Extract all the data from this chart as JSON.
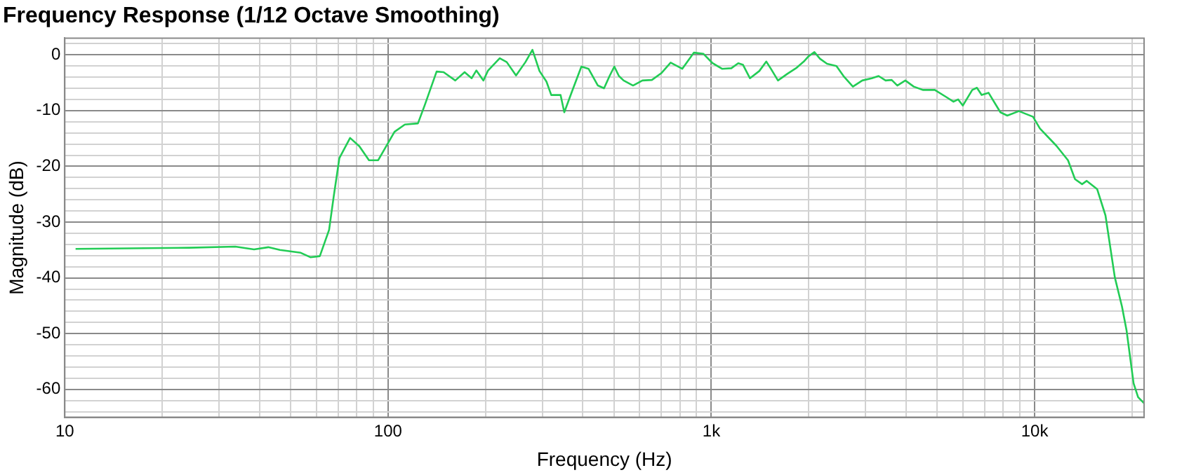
{
  "chart_data": {
    "type": "line",
    "title": "Frequency Response (1/12 Octave Smoothing)",
    "xlabel": "Frequency (Hz)",
    "ylabel": "Magnitude (dB)",
    "log": "x",
    "grid": true,
    "legend": false,
    "marker": "none",
    "line_style": "solid",
    "xlim": [
      10,
      21800
    ],
    "xticks": [
      10,
      {
        "value": 20,
        "label": null
      },
      {
        "value": 30,
        "label": null
      },
      {
        "value": 40,
        "label": null
      },
      {
        "value": 50,
        "label": null
      },
      {
        "value": 60,
        "label": null
      },
      {
        "value": 70,
        "label": null
      },
      {
        "value": 80,
        "label": null
      },
      {
        "value": 90,
        "label": null
      },
      100,
      {
        "value": 200,
        "label": null
      },
      {
        "value": 300,
        "label": null
      },
      {
        "value": 400,
        "label": null
      },
      {
        "value": 500,
        "label": null
      },
      {
        "value": 600,
        "label": null
      },
      {
        "value": 700,
        "label": null
      },
      {
        "value": 800,
        "label": null
      },
      {
        "value": 900,
        "label": null
      },
      {
        "value": 1000,
        "label": "1k"
      },
      {
        "value": 2000,
        "label": null
      },
      {
        "value": 3000,
        "label": null
      },
      {
        "value": 4000,
        "label": null
      },
      {
        "value": 5000,
        "label": null
      },
      {
        "value": 6000,
        "label": null
      },
      {
        "value": 7000,
        "label": null
      },
      {
        "value": 8000,
        "label": null
      },
      {
        "value": 9000,
        "label": null
      },
      {
        "value": 10000,
        "label": "10k"
      },
      {
        "value": 20000,
        "label": null
      }
    ],
    "ylim": [
      -65,
      3
    ],
    "yticks": [
      {
        "value": -64,
        "label": null
      },
      {
        "value": -62,
        "label": null
      },
      -60,
      {
        "value": -58,
        "label": null
      },
      {
        "value": -56,
        "label": null
      },
      {
        "value": -54,
        "label": null
      },
      {
        "value": -52,
        "label": null
      },
      -50,
      {
        "value": -48,
        "label": null
      },
      {
        "value": -46,
        "label": null
      },
      {
        "value": -44,
        "label": null
      },
      {
        "value": -42,
        "label": null
      },
      -40,
      {
        "value": -38,
        "label": null
      },
      {
        "value": -36,
        "label": null
      },
      {
        "value": -34,
        "label": null
      },
      {
        "value": -32,
        "label": null
      },
      -30,
      {
        "value": -28,
        "label": null
      },
      {
        "value": -26,
        "label": null
      },
      {
        "value": -24,
        "label": null
      },
      {
        "value": -22,
        "label": null
      },
      -20,
      {
        "value": -18,
        "label": null
      },
      {
        "value": -16,
        "label": null
      },
      {
        "value": -14,
        "label": null
      },
      {
        "value": -12,
        "label": null
      },
      -10,
      {
        "value": -8,
        "label": null
      },
      {
        "value": -6,
        "label": null
      },
      {
        "value": -4,
        "label": null
      },
      {
        "value": -2,
        "label": null
      },
      0,
      {
        "value": 2,
        "label": null
      }
    ],
    "series": [
      {
        "color": "#22cc55",
        "x": [
          10.8,
          24.2,
          33.7,
          38.5,
          42.6,
          46.3,
          53.7,
          57.5,
          61.5,
          65.7,
          67.9,
          70.7,
          76.3,
          81.5,
          87.3,
          93.2,
          104.7,
          112.7,
          123.7,
          129.9,
          141.3,
          148.5,
          161.4,
          172.5,
          181.4,
          187.5,
          197.2,
          203.9,
          221.5,
          232.8,
          248.8,
          266,
          279.6,
          294,
          309,
          319.7,
          341.6,
          350.8,
          371.5,
          396.3,
          416.9,
          445.6,
          465.6,
          484.3,
          501,
          517.6,
          535.3,
          572.4,
          612,
          654.6,
          699.7,
          748.2,
          812.7,
          883.3,
          944,
          1009,
          1079,
          1153,
          1211,
          1253,
          1316,
          1407,
          1479,
          1528,
          1607,
          1718,
          1837,
          1932,
          1995,
          2083,
          2168,
          2279,
          2437,
          2563,
          2740,
          2930,
          3132,
          3291,
          3459,
          3612,
          3760,
          3981,
          4227,
          4520,
          4911,
          5338,
          5610,
          5800,
          5997,
          6412,
          6627,
          6855,
          7200,
          7834,
          8228,
          8937,
          9882,
          10380,
          11670,
          12680,
          13330,
          14020,
          14490,
          15610,
          16560,
          17700,
          18620,
          19240,
          20230,
          20890,
          21800
        ],
        "values": [
          -34.8,
          -34.6,
          -34.4,
          -34.9,
          -34.5,
          -35.0,
          -35.5,
          -36.3,
          -36.1,
          -31.4,
          -25.4,
          -18.5,
          -14.9,
          -16.4,
          -18.9,
          -18.9,
          -13.8,
          -12.5,
          -12.3,
          -9.0,
          -3.0,
          -3.1,
          -4.6,
          -3.1,
          -4.2,
          -2.8,
          -4.6,
          -2.8,
          -0.6,
          -1.3,
          -3.7,
          -1.3,
          0.9,
          -2.9,
          -4.8,
          -7.2,
          -7.2,
          -10.3,
          -6.4,
          -2.1,
          -2.5,
          -5.5,
          -6.0,
          -3.8,
          -2.1,
          -3.8,
          -4.6,
          -5.5,
          -4.6,
          -4.5,
          -3.3,
          -1.4,
          -2.5,
          0.4,
          0.2,
          -1.5,
          -2.5,
          -2.4,
          -1.5,
          -1.8,
          -4.2,
          -2.9,
          -1.2,
          -2.5,
          -4.6,
          -3.4,
          -2.3,
          -1.2,
          -0.3,
          0.5,
          -0.7,
          -1.6,
          -2.0,
          -3.8,
          -5.7,
          -4.6,
          -4.2,
          -3.8,
          -4.6,
          -4.5,
          -5.5,
          -4.6,
          -5.7,
          -6.3,
          -6.3,
          -7.6,
          -8.4,
          -8.0,
          -9.1,
          -6.3,
          -5.9,
          -7.2,
          -6.8,
          -10.3,
          -10.9,
          -10.1,
          -11.1,
          -13.2,
          -16.3,
          -18.9,
          -22.3,
          -23.2,
          -22.6,
          -24.1,
          -28.8,
          -39.9,
          -45.1,
          -49.4,
          -58.9,
          -61.4,
          -62.5
        ]
      }
    ]
  }
}
